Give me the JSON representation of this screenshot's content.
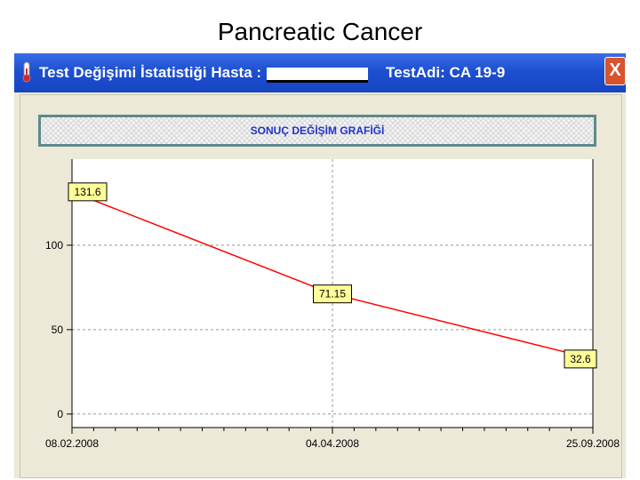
{
  "slide": {
    "title": "Pancreatic Cancer"
  },
  "window": {
    "title_prefix": "Test Değişimi İstatistiği Hasta :",
    "test_label": "TestAdi: CA 19-9",
    "close_symbol": "X"
  },
  "chart_header": "SONUÇ DEĞİŞİM GRAFİĞİ",
  "chart_data": {
    "type": "line",
    "x": [
      "08.02.2008",
      "04.04.2008",
      "25.09.2008"
    ],
    "y": [
      131.6,
      71.15,
      32.6
    ],
    "data_labels": [
      "131.6",
      "71.15",
      "32.6"
    ],
    "y_ticks": [
      "100",
      "50",
      "0"
    ],
    "ylim": [
      -8,
      151
    ],
    "grid": true,
    "line_color": "#ff0000",
    "label_bg": "#ffff99"
  }
}
